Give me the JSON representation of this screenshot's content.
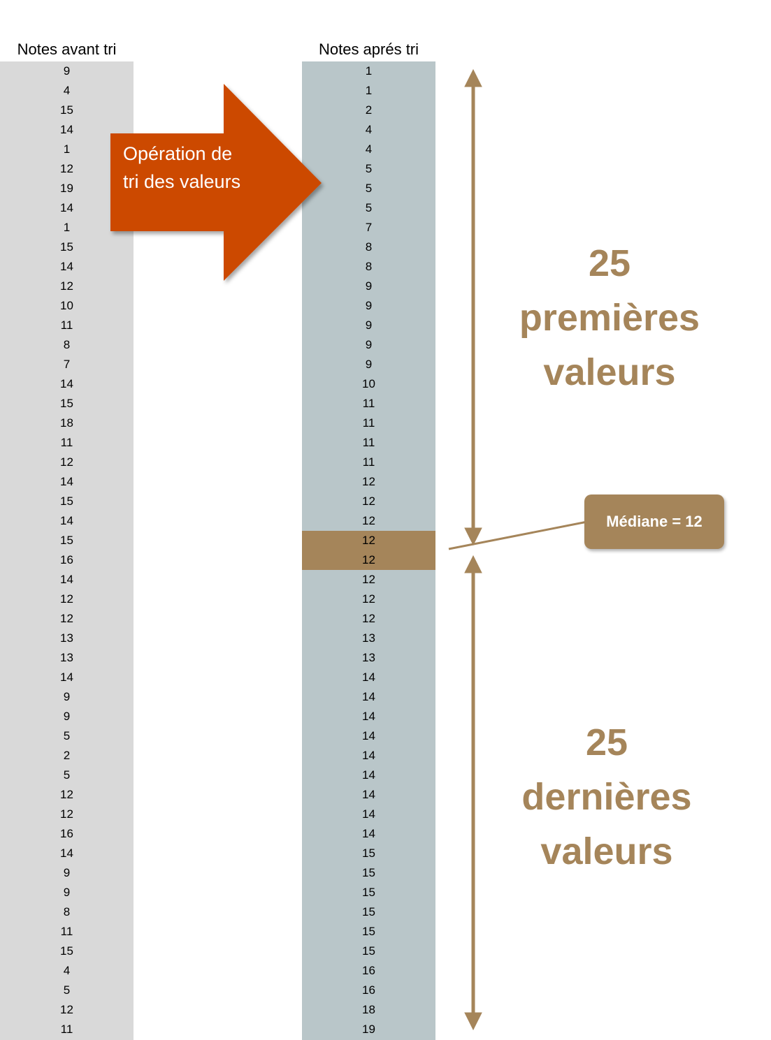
{
  "columns": {
    "before": {
      "header": "Notes avant tri",
      "values": [
        9,
        4,
        15,
        14,
        1,
        12,
        19,
        14,
        1,
        15,
        14,
        12,
        10,
        11,
        8,
        7,
        14,
        15,
        18,
        11,
        12,
        14,
        15,
        14,
        15,
        16,
        14,
        12,
        12,
        13,
        13,
        14,
        9,
        9,
        5,
        2,
        5,
        12,
        12,
        16,
        14,
        9,
        9,
        8,
        11,
        15,
        4,
        5,
        12,
        11
      ]
    },
    "after": {
      "header": "Notes aprés tri",
      "values": [
        1,
        1,
        2,
        4,
        4,
        5,
        5,
        5,
        7,
        8,
        8,
        9,
        9,
        9,
        9,
        9,
        10,
        11,
        11,
        11,
        11,
        12,
        12,
        12,
        12,
        12,
        12,
        12,
        12,
        13,
        13,
        14,
        14,
        14,
        14,
        14,
        14,
        14,
        14,
        14,
        15,
        15,
        15,
        15,
        15,
        15,
        16,
        16,
        18,
        19
      ]
    },
    "median_rows": [
      24,
      25
    ]
  },
  "sort_arrow": {
    "lines": [
      "Opération de",
      "tri des valeurs"
    ],
    "color": "#cc4a00"
  },
  "first_half": {
    "lines": [
      "25",
      "premières",
      "valeurs"
    ]
  },
  "last_half": {
    "lines": [
      "25",
      "dernières",
      "valeurs"
    ]
  },
  "median_callout": {
    "label": "Médiane = 12"
  },
  "colors": {
    "before_column": "#d9d9d9",
    "after_column": "#b9c6c9",
    "accent": "#a5855a"
  }
}
